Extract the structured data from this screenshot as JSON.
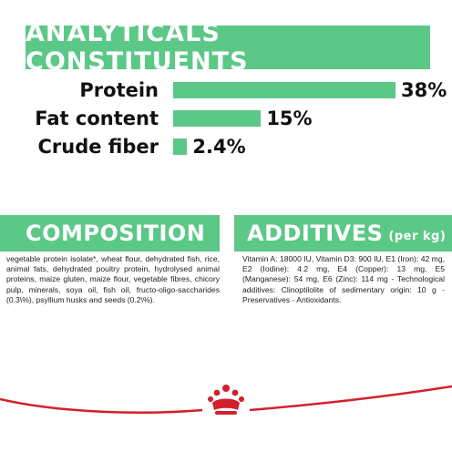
{
  "analyticals": {
    "title": "ANALYTICALS CONSTITUENTS",
    "rows": [
      {
        "label": "Protein",
        "value": "38%",
        "level": 38
      },
      {
        "label": "Fat content",
        "value": "15%",
        "level": 15
      },
      {
        "label": "Crude fiber",
        "value": "2.4%",
        "level": 2.4
      }
    ]
  },
  "composition": {
    "title": "COMPOSITION",
    "text": "vegetable protein isolate*, wheat flour, dehydrated fish, rice, animal fats, dehydrated poultry protein, hydrolysed animal proteins, maize gluten, maize flour, vegetable fibres, chicory pulp, minerals, soya oil, fish oil, fructo-oligo-saccharides (0.3\\%), psyllium husks and seeds (0.2\\%)."
  },
  "additives": {
    "title": "ADDITIVES",
    "unit": "(per kg)",
    "text": "Vitamin A: 18000 IU, Vitamin D3: 900 IU, E1 (Iron): 42 mg, E2 (Iodine): 4.2 mg, E4 (Copper): 13 mg, E5 (Manganese): 54 mg, E6 (Zinc): 114 mg - Technological additives: Clinoptilolite of sedimentary origin: 10 g - Preservatives - Antioxidants."
  },
  "colors": {
    "accent": "#5cc887",
    "brand": "#d2202c"
  },
  "icons": [
    "royal-canin-crown-logo"
  ]
}
